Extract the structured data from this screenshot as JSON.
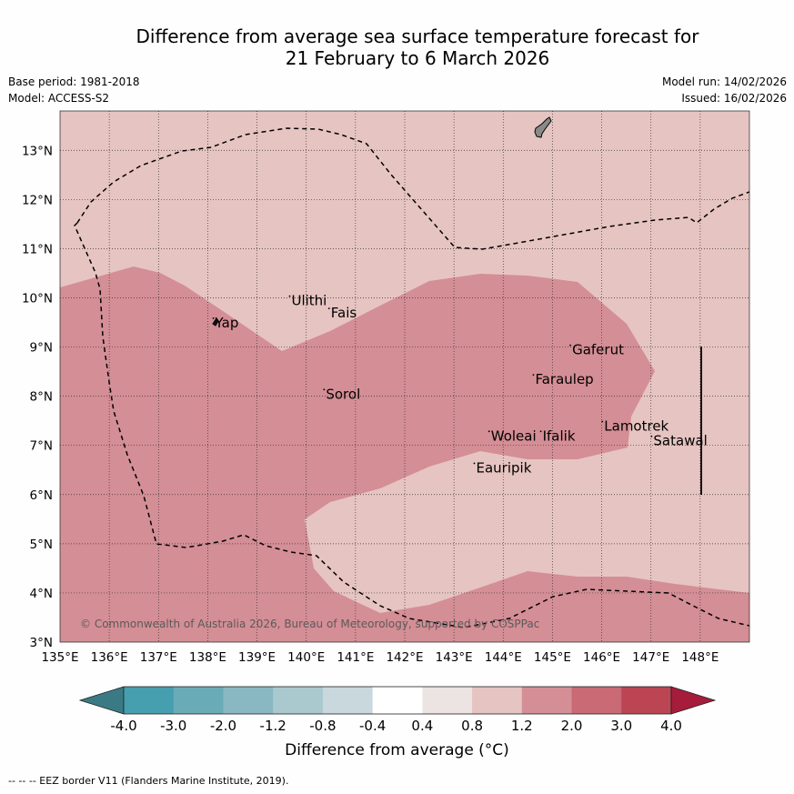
{
  "header": {
    "title_line1": "Difference from average sea surface temperature forecast for",
    "title_line2": "21 February to 6 March 2026",
    "base_period": "Base period: 1981-2018",
    "model": "Model: ACCESS-S2",
    "model_run": "Model run: 14/02/2026",
    "issued": "Issued: 16/02/2026"
  },
  "map": {
    "lon_range": [
      135,
      149
    ],
    "lat_range": [
      3,
      13.8
    ],
    "lon_ticks": [
      "135°E",
      "136°E",
      "137°E",
      "138°E",
      "139°E",
      "140°E",
      "141°E",
      "142°E",
      "143°E",
      "144°E",
      "145°E",
      "146°E",
      "147°E",
      "148°E"
    ],
    "lat_ticks": [
      "3°N",
      "4°N",
      "5°N",
      "6°N",
      "7°N",
      "8°N",
      "9°N",
      "10°N",
      "11°N",
      "12°N",
      "13°N"
    ],
    "copyright": "© Commonwealth of Australia 2026, Bureau of Meteorology, supported by COSPPac",
    "places": [
      {
        "name": "Ulithi",
        "lon": 139.7,
        "lat": 9.85
      },
      {
        "name": "Fais",
        "lon": 140.5,
        "lat": 9.6
      },
      {
        "name": "Yap",
        "lon": 138.15,
        "lat": 9.4
      },
      {
        "name": "Gaferut",
        "lon": 145.4,
        "lat": 8.85
      },
      {
        "name": "Faraulep",
        "lon": 144.65,
        "lat": 8.25
      },
      {
        "name": "Sorol",
        "lon": 140.4,
        "lat": 7.95
      },
      {
        "name": "Lamotrek",
        "lon": 146.05,
        "lat": 7.3
      },
      {
        "name": "Woleai",
        "lon": 143.75,
        "lat": 7.1
      },
      {
        "name": "Ifalik",
        "lon": 144.8,
        "lat": 7.1
      },
      {
        "name": "Satawal",
        "lon": 147.05,
        "lat": 7.0
      },
      {
        "name": "Eauripik",
        "lon": 143.45,
        "lat": 6.45
      }
    ]
  },
  "colorbar": {
    "title": "Difference from average (°C)",
    "labels": [
      "-4.0",
      "-3.0",
      "-2.0",
      "-1.2",
      "-0.8",
      "-0.4",
      "0.4",
      "0.8",
      "1.2",
      "2.0",
      "3.0",
      "4.0"
    ],
    "colors": [
      "#459faf",
      "#6aabb8",
      "#89b7c2",
      "#a9c9cf",
      "#c9d8dc",
      "#ffffff",
      "#ece4e2",
      "#e6c4c1",
      "#d48e95",
      "#c96a74",
      "#bc4554"
    ],
    "under_color": "#3a7a85",
    "over_color": "#a51d3a"
  },
  "footnote": "--  --  -- EEZ border V11 (Flanders Marine Institute, 2019)."
}
